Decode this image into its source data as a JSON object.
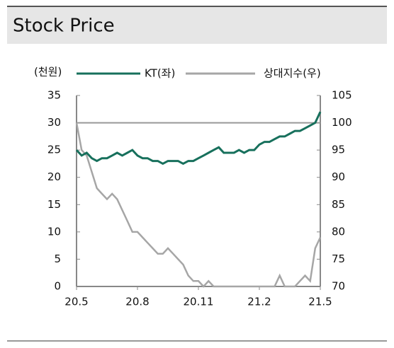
{
  "chart_data": {
    "type": "line",
    "title": "Stock Price",
    "ylabel": "(천원)",
    "categories": [
      "20.5",
      null,
      null,
      null,
      null,
      null,
      null,
      null,
      null,
      null,
      null,
      null,
      "20.8",
      null,
      null,
      null,
      null,
      null,
      null,
      null,
      null,
      null,
      null,
      null,
      "20.11",
      null,
      null,
      null,
      null,
      null,
      null,
      null,
      null,
      null,
      null,
      null,
      "21.2",
      null,
      null,
      null,
      null,
      null,
      null,
      null,
      null,
      null,
      null,
      null,
      "21.5"
    ],
    "series": [
      {
        "name": "KT(좌)",
        "color": "#17705c",
        "values": [
          25,
          24,
          24.5,
          23.5,
          23,
          23.5,
          23.5,
          24,
          24.5,
          24,
          24.5,
          25,
          24,
          23.5,
          23.5,
          23,
          23,
          22.5,
          23,
          23,
          23,
          22.5,
          23,
          23,
          23.5,
          24,
          24.5,
          25,
          25.5,
          24.5,
          24.5,
          24.5,
          25,
          24.5,
          25,
          25,
          26,
          26.5,
          26.5,
          27,
          27.5,
          27.5,
          28,
          28.5,
          28.5,
          29,
          29.5,
          30,
          32
        ]
      },
      {
        "name": "상대지수(우)",
        "color": "#a6a6a6",
        "axis": "y2",
        "values": [
          100,
          95,
          94,
          91,
          88,
          87,
          86,
          87,
          86,
          84,
          82,
          80,
          80,
          79,
          78,
          77,
          76,
          76,
          77,
          76,
          75,
          74,
          72,
          71,
          71,
          70,
          71,
          70,
          70,
          70,
          70,
          70,
          70,
          70,
          70,
          70,
          70,
          70,
          70,
          70,
          72,
          70,
          70,
          70,
          71,
          72,
          71,
          77,
          79
        ]
      }
    ],
    "ylim": [
      0,
      35
    ],
    "yticks": [
      0,
      5,
      10,
      15,
      20,
      25,
      30,
      35
    ],
    "y2lim": [
      70,
      105
    ],
    "y2ticks": [
      70,
      75,
      80,
      85,
      90,
      95,
      100,
      105
    ],
    "y2_reference": 100
  }
}
